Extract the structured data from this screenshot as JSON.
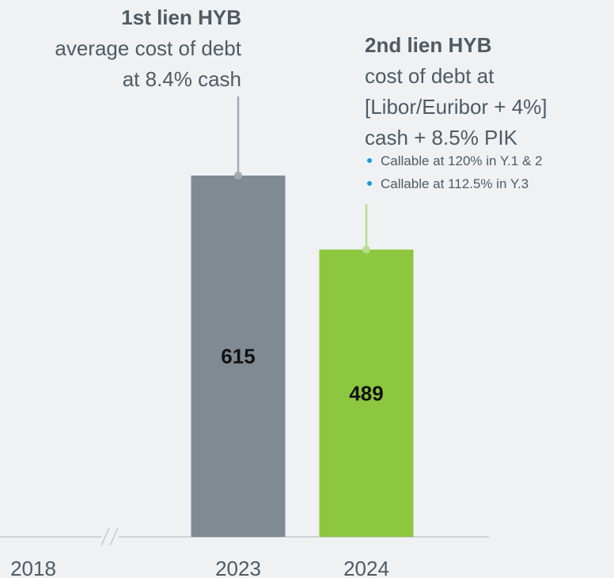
{
  "chart_data": {
    "type": "bar",
    "categories": [
      "2018",
      "2023",
      "2024"
    ],
    "values": [
      null,
      615,
      489
    ],
    "colors": [
      null,
      "#7f8a93",
      "#8dc63f"
    ],
    "ylim": [
      0,
      650
    ],
    "annotations": [
      {
        "title": "1st lien HYB",
        "lines": [
          "average cost of debt",
          "at 8.4% cash"
        ],
        "bullets": [],
        "color": "#a3aab0"
      },
      {
        "title": "2nd lien HYB",
        "lines": [
          "cost of debt at",
          "[Libor/Euribor + 4%]",
          "cash + 8.5% PIK"
        ],
        "bullets": [
          "Callable at 120% in Y.1 & 2",
          "Callable at 112.5% in Y.3"
        ],
        "color": "#b6dc8c"
      }
    ]
  }
}
